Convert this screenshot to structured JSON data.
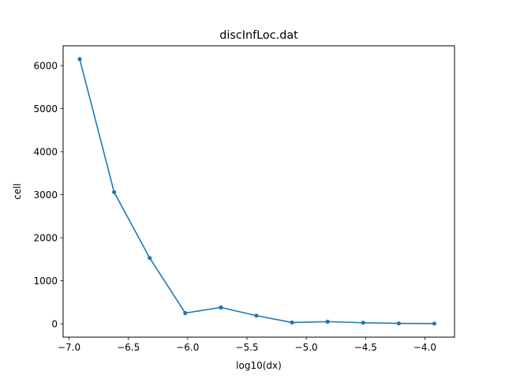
{
  "chart_data": {
    "type": "line",
    "title": "discInfLoc.dat",
    "xlabel": "log10(dx)",
    "ylabel": "cell",
    "xlim": [
      -7.05,
      -3.75
    ],
    "ylim": [
      -310,
      6460
    ],
    "x_ticks": [
      -7.0,
      -6.5,
      -6.0,
      -5.5,
      -5.0,
      -4.5,
      -4.0
    ],
    "x_tick_labels": [
      "−7.0",
      "−6.5",
      "−6.0",
      "−5.5",
      "−5.0",
      "−4.5",
      "−4.0"
    ],
    "y_ticks": [
      0,
      1000,
      2000,
      3000,
      4000,
      5000,
      6000
    ],
    "y_tick_labels": [
      "0",
      "1000",
      "2000",
      "3000",
      "4000",
      "5000",
      "6000"
    ],
    "grid": false,
    "series": [
      {
        "color": "#1f77b4",
        "marker": "dot",
        "x": [
          -6.91,
          -6.62,
          -6.32,
          -6.02,
          -5.72,
          -5.42,
          -5.12,
          -4.82,
          -4.52,
          -4.22,
          -3.92
        ],
        "y": [
          6150,
          3060,
          1530,
          250,
          380,
          190,
          30,
          50,
          25,
          10,
          5
        ]
      }
    ]
  }
}
